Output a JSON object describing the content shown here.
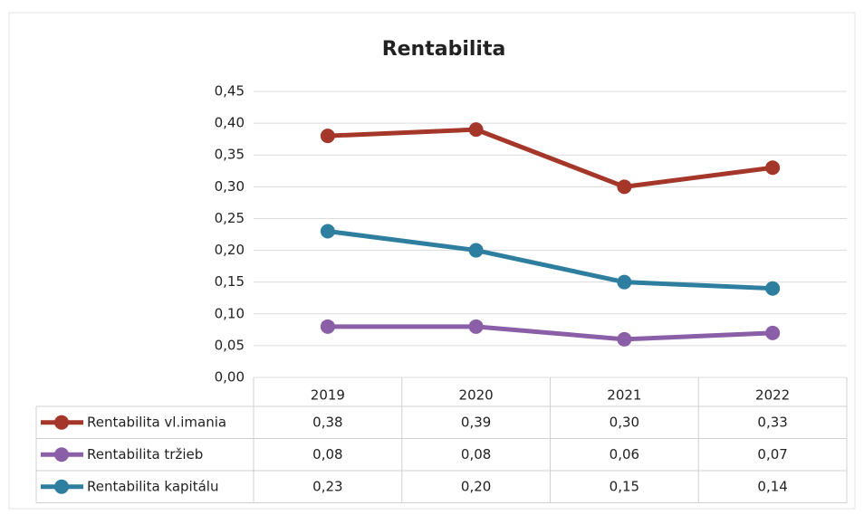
{
  "chart_data": {
    "type": "line",
    "title": "Rentabilita",
    "categories": [
      "2019",
      "2020",
      "2021",
      "2022"
    ],
    "ylim": [
      0,
      0.45
    ],
    "yticks": [
      {
        "value": 0,
        "label": "0,00"
      },
      {
        "value": 0.05,
        "label": "0,05"
      },
      {
        "value": 0.1,
        "label": "0,10"
      },
      {
        "value": 0.15,
        "label": "0,15"
      },
      {
        "value": 0.2,
        "label": "0,20"
      },
      {
        "value": 0.25,
        "label": "0,25"
      },
      {
        "value": 0.3,
        "label": "0,30"
      },
      {
        "value": 0.35,
        "label": "0,35"
      },
      {
        "value": 0.4,
        "label": "0,40"
      },
      {
        "value": 0.45,
        "label": "0,45"
      }
    ],
    "grid": true,
    "series": [
      {
        "name": "Rentabilita vl.imania",
        "color": "#a5372a",
        "values": [
          0.38,
          0.39,
          0.3,
          0.33
        ],
        "value_labels": [
          "0,38",
          "0,39",
          "0,30",
          "0,33"
        ]
      },
      {
        "name": "Rentabilita tržieb",
        "color": "#8b5fa8",
        "values": [
          0.08,
          0.08,
          0.06,
          0.07
        ],
        "value_labels": [
          "0,08",
          "0,08",
          "0,06",
          "0,07"
        ]
      },
      {
        "name": "Rentabilita kapitálu",
        "color": "#2e7ea0",
        "values": [
          0.23,
          0.2,
          0.15,
          0.14
        ],
        "value_labels": [
          "0,23",
          "0,20",
          "0,15",
          "0,14"
        ]
      }
    ]
  }
}
